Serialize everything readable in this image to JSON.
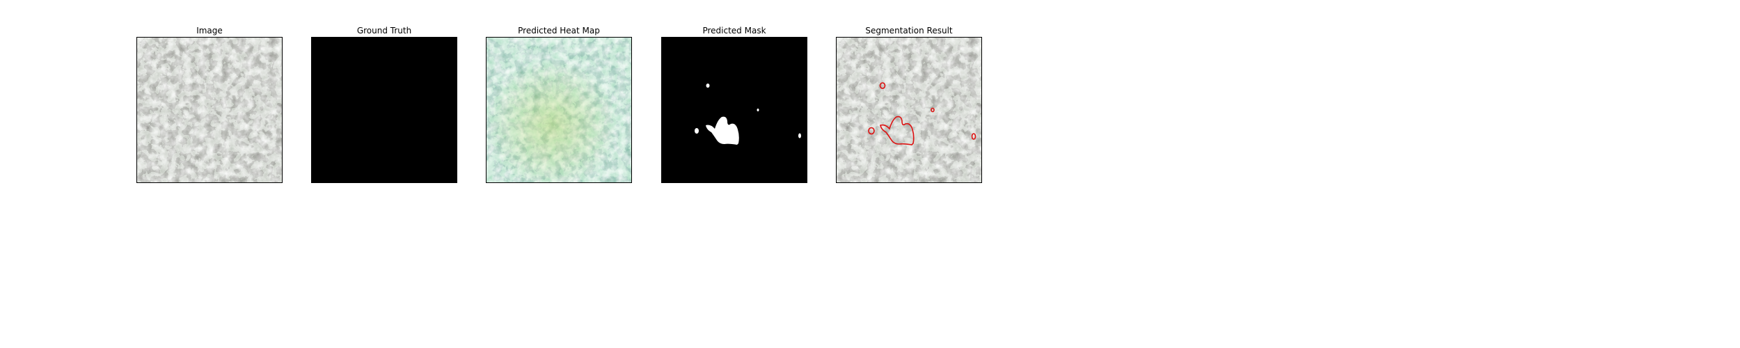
{
  "figure": {
    "panels": [
      {
        "title": "Image",
        "icon": "texture-image"
      },
      {
        "title": "Ground Truth",
        "icon": "empty-mask",
        "fill": "#000000"
      },
      {
        "title": "Predicted Heat Map",
        "icon": "heatmap-overlay"
      },
      {
        "title": "Predicted Mask",
        "icon": "binary-mask",
        "fill": "#000000"
      },
      {
        "title": "Segmentation Result",
        "icon": "contour-overlay",
        "contour_color": "#dd1111"
      }
    ]
  }
}
